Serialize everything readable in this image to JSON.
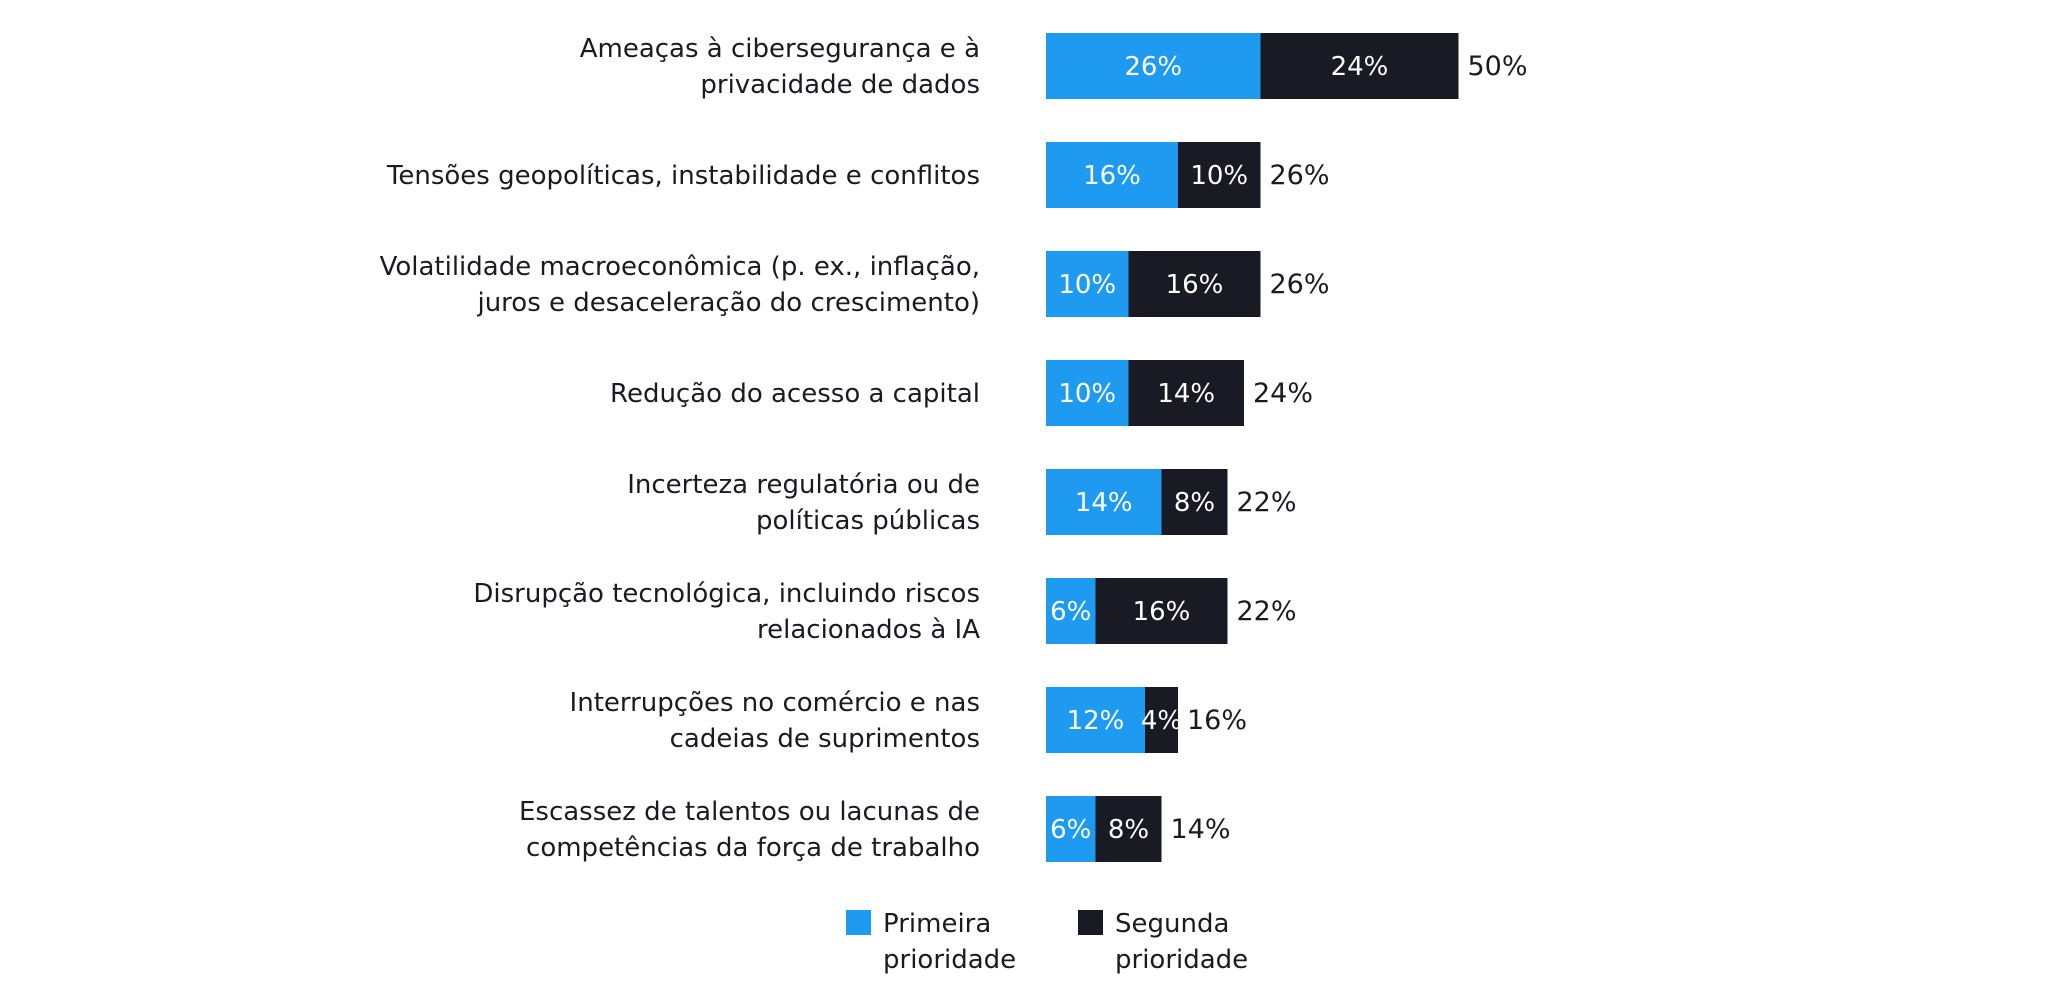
{
  "colors": {
    "primary": "#1e9bf0",
    "secondary": "#1a1a24",
    "text": "#1a1a24",
    "segment_text": "#ffffff",
    "background": "#ffffff"
  },
  "chart_data": {
    "type": "bar",
    "orientation": "horizontal",
    "stacked": true,
    "value_suffix": "%",
    "categories": [
      [
        "Ameaças à cibersegurança e à",
        "privacidade de dados"
      ],
      [
        "Tensões geopolíticas, instabilidade e conflitos"
      ],
      [
        "Volatilidade macroeconômica (p. ex., inflação,",
        "juros e desaceleração do crescimento)"
      ],
      [
        "Redução do acesso a capital"
      ],
      [
        "Incerteza regulatória ou de",
        "políticas públicas"
      ],
      [
        "Disrupção tecnológica, incluindo riscos",
        "relacionados à IA"
      ],
      [
        "Interrupções no comércio e nas",
        "cadeias de suprimentos"
      ],
      [
        "Escassez de talentos ou lacunas de",
        "competências da força de trabalho"
      ]
    ],
    "series": [
      {
        "name": "Primeira prioridade",
        "legend_lines": [
          "Primeira",
          "prioridade"
        ],
        "color": "#1e9bf0",
        "values": [
          26,
          16,
          10,
          10,
          14,
          6,
          12,
          6
        ]
      },
      {
        "name": "Segunda prioridade",
        "legend_lines": [
          "Segunda",
          "prioridade"
        ],
        "color": "#1a1a24",
        "values": [
          24,
          10,
          16,
          14,
          8,
          16,
          4,
          8
        ]
      }
    ],
    "totals": [
      50,
      26,
      26,
      24,
      22,
      22,
      16,
      14
    ],
    "xlim": [
      0,
      50
    ],
    "grid": false,
    "legend_position": "bottom"
  }
}
